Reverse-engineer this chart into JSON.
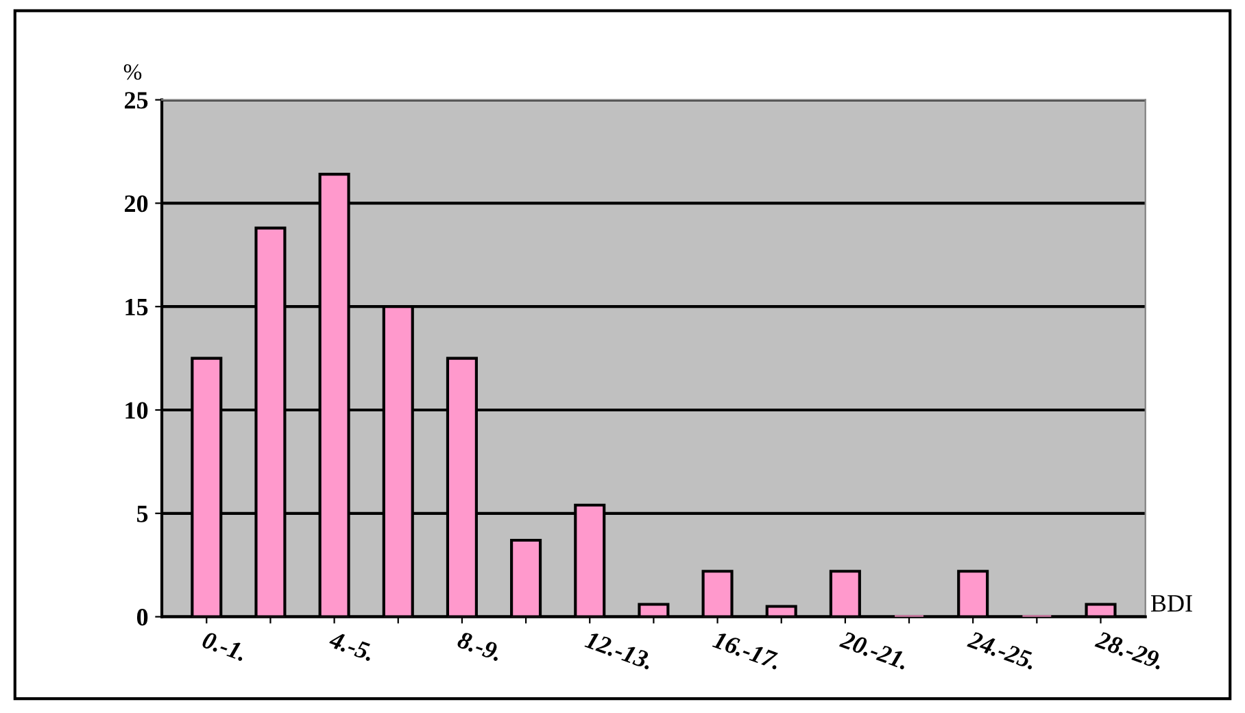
{
  "chart_data": {
    "type": "bar",
    "xlabel": "BDI",
    "ylabel": "%",
    "categories": [
      "0.-1.",
      null,
      "4.-5.",
      null,
      "8.-9.",
      null,
      "12.-13.",
      null,
      "16.-17.",
      null,
      "20.-21.",
      null,
      "24.-25.",
      null,
      "28.-29."
    ],
    "values": [
      12.5,
      18.8,
      21.4,
      15.0,
      12.5,
      3.7,
      5.4,
      0.6,
      2.2,
      0.5,
      2.2,
      0,
      2.2,
      0,
      0.6
    ],
    "color": "#ff99cc",
    "ylim": [
      0,
      25
    ],
    "yticks": [
      0,
      5,
      10,
      15,
      20,
      25
    ],
    "grid": "y",
    "legend": false
  }
}
